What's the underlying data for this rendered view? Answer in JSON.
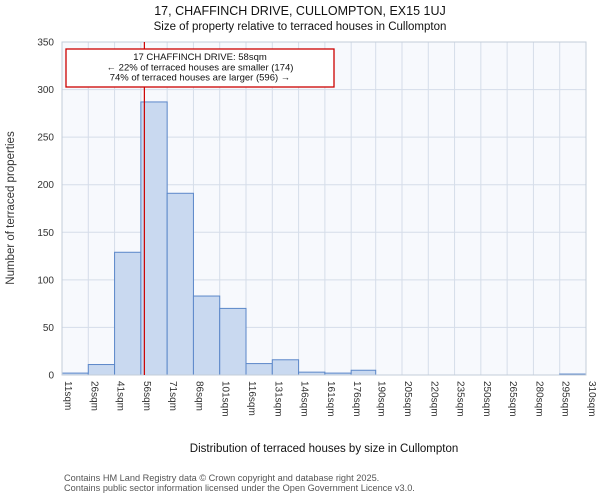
{
  "chart_data": {
    "type": "bar",
    "title": "17, CHAFFINCH DRIVE, CULLOMPTON, EX15 1UJ",
    "subtitle": "Size of property relative to terraced houses in Cullompton",
    "xlabel": "Distribution of terraced houses by size in Cullompton",
    "ylabel": "Number of terraced properties",
    "categories": [
      "11sqm",
      "26sqm",
      "41sqm",
      "56sqm",
      "71sqm",
      "86sqm",
      "101sqm",
      "116sqm",
      "131sqm",
      "146sqm",
      "161sqm",
      "176sqm",
      "190sqm",
      "205sqm",
      "220sqm",
      "235sqm",
      "250sqm",
      "265sqm",
      "280sqm",
      "295sqm",
      "310sqm"
    ],
    "bin_edges": [
      11,
      26,
      41,
      56,
      71,
      86,
      101,
      116,
      131,
      146,
      161,
      176,
      190,
      205,
      220,
      235,
      250,
      265,
      280,
      295,
      310
    ],
    "values": [
      2,
      11,
      129,
      287,
      191,
      83,
      70,
      12,
      16,
      3,
      2,
      5,
      0,
      0,
      0,
      0,
      0,
      0,
      0,
      1
    ],
    "ylim": [
      0,
      350
    ],
    "yticks": [
      0,
      50,
      100,
      150,
      200,
      250,
      300,
      350
    ],
    "grid": true,
    "legend": "none",
    "marker": {
      "label": "17 CHAFFINCH DRIVE",
      "value": 58,
      "unit": "sqm"
    },
    "annotation": {
      "line1": "17 CHAFFINCH DRIVE: 58sqm",
      "line2": "← 22% of terraced houses are smaller (174)",
      "line3": "74% of terraced houses are larger (596) →"
    },
    "colors": {
      "bar_fill": "#c9d9f0",
      "bar_stroke": "#5b87c9",
      "grid": "#d5dde9",
      "plot_bg": "#f7f9fd",
      "plot_border": "#c3cdd9",
      "marker_line": "#cc0000",
      "annotation_border": "#cc0000"
    }
  },
  "footer": {
    "line1": "Contains HM Land Registry data © Crown copyright and database right 2025.",
    "line2": "Contains public sector information licensed under the Open Government Licence v3.0."
  }
}
